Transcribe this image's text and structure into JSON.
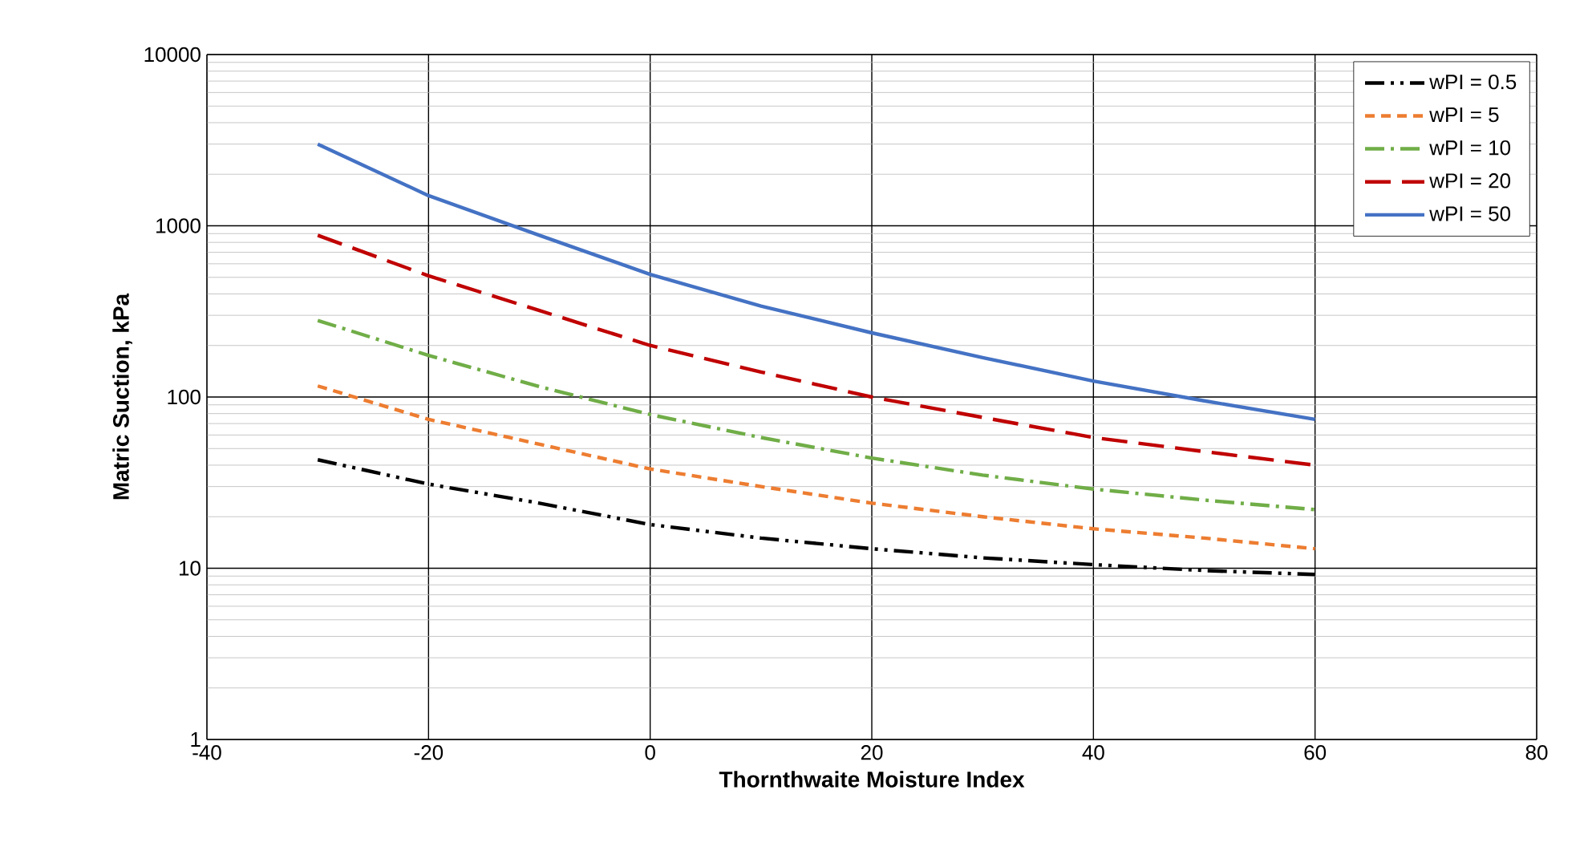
{
  "chart_data": {
    "type": "line",
    "xlabel": "Thornthwaite Moisture Index",
    "ylabel": "Matric Suction, kPa",
    "log": "y",
    "grid": true,
    "legend": "top right",
    "x": [
      -30,
      -20,
      -10,
      0,
      10,
      20,
      30,
      40,
      50,
      60
    ],
    "xlim": [
      -40,
      80
    ],
    "xticks": [
      -40,
      -20,
      0,
      20,
      40,
      60,
      80
    ],
    "ylim": [
      1,
      10000
    ],
    "yticks": [
      1,
      10,
      100,
      1000,
      10000
    ],
    "series": [
      {
        "name": "wPI = 0.5",
        "color": "#000000",
        "line_style": "dashdotdotted",
        "values": [
          43,
          31,
          24,
          18,
          15,
          13,
          11.5,
          10.5,
          9.7,
          9.2
        ]
      },
      {
        "name": "wPI = 5",
        "color": "#ed7d31",
        "line_style": "dashed",
        "values": [
          116,
          74,
          53,
          38,
          30,
          24,
          20,
          17,
          15,
          13
        ]
      },
      {
        "name": "wPI = 10",
        "color": "#70ad47",
        "line_style": "dashdotted",
        "values": [
          280,
          175,
          115,
          79,
          58,
          44,
          35,
          29,
          25,
          22
        ]
      },
      {
        "name": "wPI = 20",
        "color": "#c00000",
        "line_style": "loosely dashed",
        "values": [
          880,
          510,
          320,
          200,
          140,
          100,
          76,
          58,
          48,
          40
        ]
      },
      {
        "name": "wPI = 50",
        "color": "#4472c4",
        "line_style": "solid",
        "values": [
          3000,
          1500,
          880,
          520,
          340,
          237,
          170,
          124,
          95,
          74
        ]
      }
    ]
  }
}
